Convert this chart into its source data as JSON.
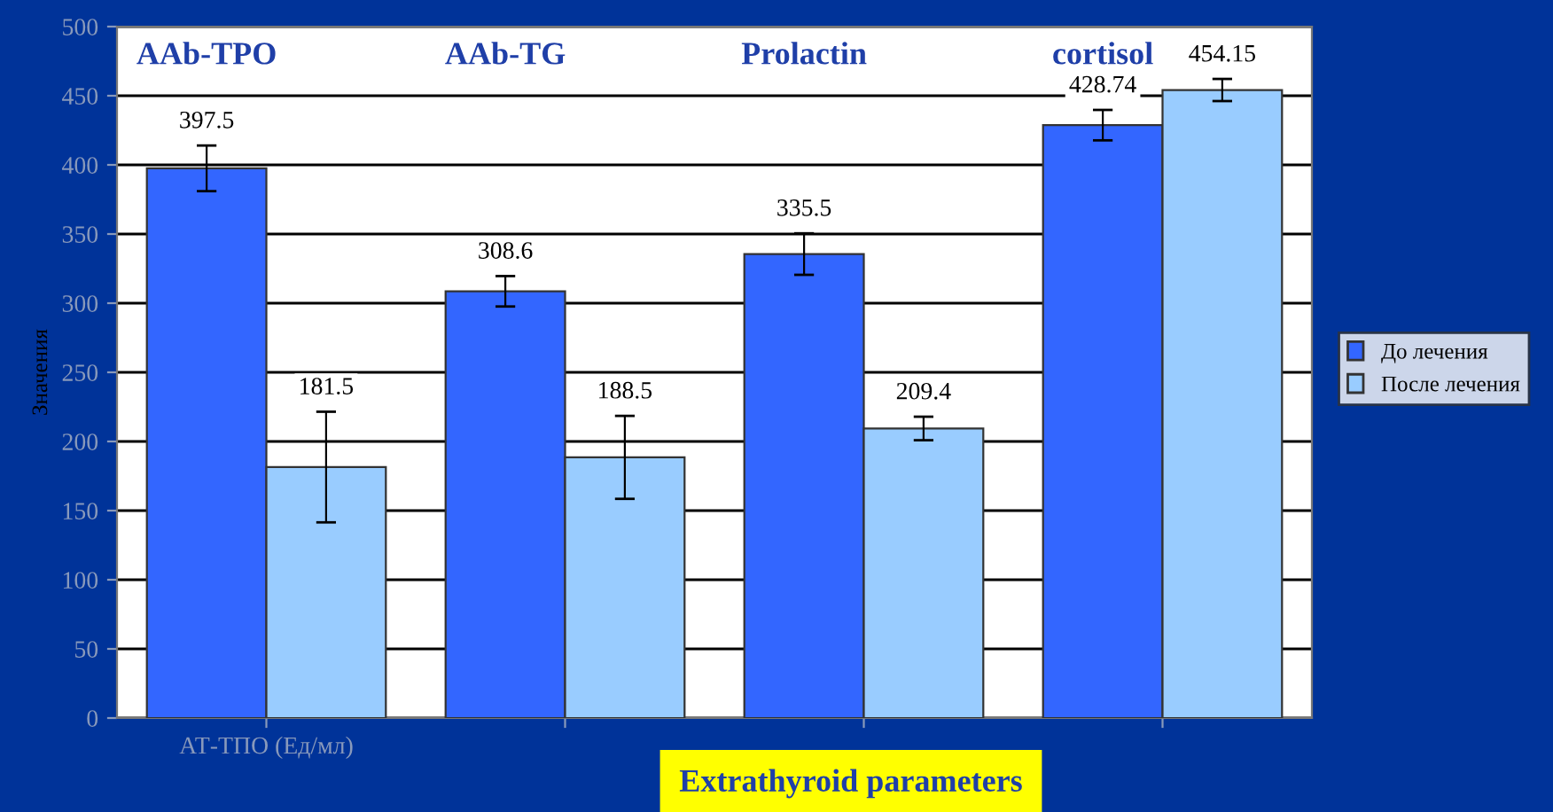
{
  "chart_data": {
    "type": "bar",
    "ylabel": "Значения",
    "categories": [
      "АТ-ТПО (Ед/мл)",
      null,
      null,
      null
    ],
    "series": [
      {
        "name": "До лечения",
        "color": "#3366ff",
        "values": [
          397.5,
          308.6,
          335.5,
          428.74
        ],
        "errors": [
          16.5,
          11,
          15,
          11
        ]
      },
      {
        "name": "После лечения",
        "color": "#99ccff",
        "values": [
          181.5,
          188.5,
          209.4,
          454.15
        ],
        "errors": [
          40,
          30,
          8.5,
          8
        ]
      }
    ],
    "ylim": [
      0,
      500
    ],
    "yticks": [
      0,
      50,
      100,
      150,
      200,
      250,
      300,
      350,
      400,
      450,
      500
    ],
    "grid": "y",
    "legend": "right",
    "data_labels": true,
    "annotations": [
      "AAb-TPO",
      "AAb-TG",
      "Prolactin",
      "cortisol",
      "Extrathyroid parameters"
    ]
  }
}
